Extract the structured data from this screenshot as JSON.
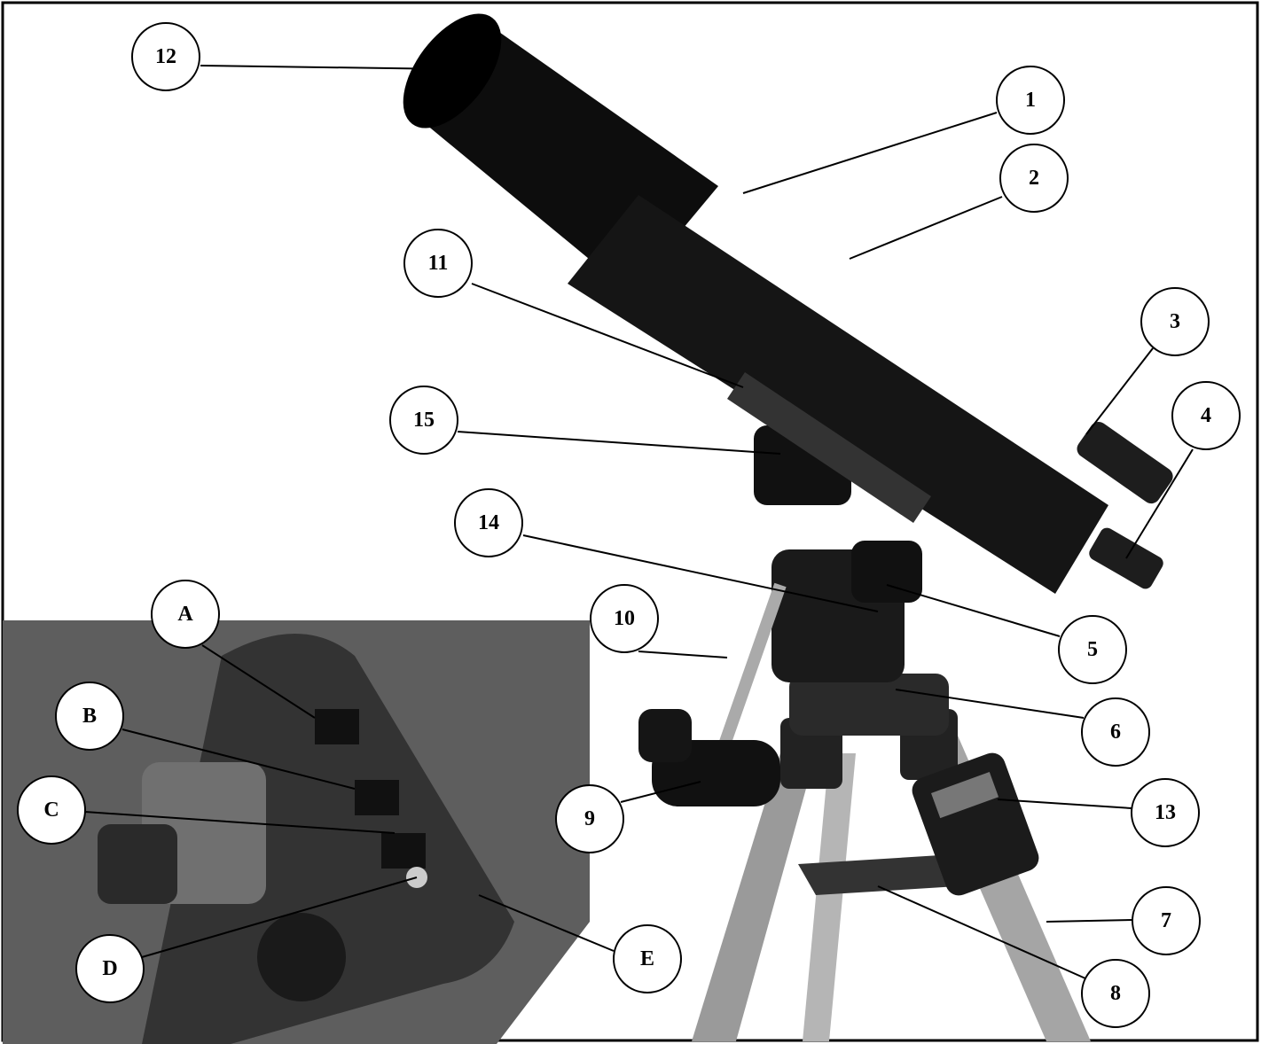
{
  "callouts": [
    {
      "label": "12"
    },
    {
      "label": "1"
    },
    {
      "label": "2"
    },
    {
      "label": "11"
    },
    {
      "label": "3"
    },
    {
      "label": "4"
    },
    {
      "label": "15"
    },
    {
      "label": "14"
    },
    {
      "label": "10"
    },
    {
      "label": "5"
    },
    {
      "label": "6"
    },
    {
      "label": "9"
    },
    {
      "label": "13"
    },
    {
      "label": "7"
    },
    {
      "label": "8"
    },
    {
      "label": "A"
    },
    {
      "label": "B"
    },
    {
      "label": "C"
    },
    {
      "label": "D"
    },
    {
      "label": "E"
    }
  ]
}
